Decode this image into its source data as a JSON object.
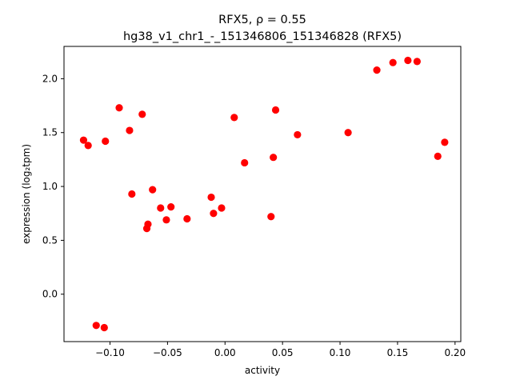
{
  "chart_data": {
    "type": "scatter",
    "title_line1": "RFX5, ρ = 0.55",
    "title_line2": "hg38_v1_chr1_-_151346806_151346828 (RFX5)",
    "xlabel": "activity",
    "ylabel": "expression (log₂tpm)",
    "xlim": [
      -0.14,
      0.205
    ],
    "ylim": [
      -0.44,
      2.3
    ],
    "xticks": [
      {
        "value": -0.1,
        "label": "−0.10"
      },
      {
        "value": -0.05,
        "label": "−0.05"
      },
      {
        "value": 0.0,
        "label": "0.00"
      },
      {
        "value": 0.05,
        "label": "0.05"
      },
      {
        "value": 0.1,
        "label": "0.10"
      },
      {
        "value": 0.15,
        "label": "0.15"
      },
      {
        "value": 0.2,
        "label": "0.20"
      }
    ],
    "yticks": [
      {
        "value": 0.0,
        "label": "0.0"
      },
      {
        "value": 0.5,
        "label": "0.5"
      },
      {
        "value": 1.0,
        "label": "1.0"
      },
      {
        "value": 1.5,
        "label": "1.5"
      },
      {
        "value": 2.0,
        "label": "2.0"
      }
    ],
    "point_color": "#ff0000",
    "grid": false,
    "points": [
      {
        "x": -0.123,
        "y": 1.43
      },
      {
        "x": -0.119,
        "y": 1.38
      },
      {
        "x": -0.112,
        "y": -0.29
      },
      {
        "x": -0.105,
        "y": -0.31
      },
      {
        "x": -0.104,
        "y": 1.42
      },
      {
        "x": -0.092,
        "y": 1.73
      },
      {
        "x": -0.083,
        "y": 1.52
      },
      {
        "x": -0.081,
        "y": 0.93
      },
      {
        "x": -0.072,
        "y": 1.67
      },
      {
        "x": -0.068,
        "y": 0.61
      },
      {
        "x": -0.067,
        "y": 0.65
      },
      {
        "x": -0.063,
        "y": 0.97
      },
      {
        "x": -0.056,
        "y": 0.8
      },
      {
        "x": -0.051,
        "y": 0.69
      },
      {
        "x": -0.047,
        "y": 0.81
      },
      {
        "x": -0.033,
        "y": 0.7
      },
      {
        "x": -0.012,
        "y": 0.9
      },
      {
        "x": -0.01,
        "y": 0.75
      },
      {
        "x": -0.003,
        "y": 0.8
      },
      {
        "x": 0.008,
        "y": 1.64
      },
      {
        "x": 0.017,
        "y": 1.22
      },
      {
        "x": 0.04,
        "y": 0.72
      },
      {
        "x": 0.042,
        "y": 1.27
      },
      {
        "x": 0.044,
        "y": 1.71
      },
      {
        "x": 0.063,
        "y": 1.48
      },
      {
        "x": 0.107,
        "y": 1.5
      },
      {
        "x": 0.132,
        "y": 2.08
      },
      {
        "x": 0.146,
        "y": 2.15
      },
      {
        "x": 0.159,
        "y": 2.17
      },
      {
        "x": 0.167,
        "y": 2.16
      },
      {
        "x": 0.185,
        "y": 1.28
      },
      {
        "x": 0.191,
        "y": 1.41
      }
    ]
  }
}
